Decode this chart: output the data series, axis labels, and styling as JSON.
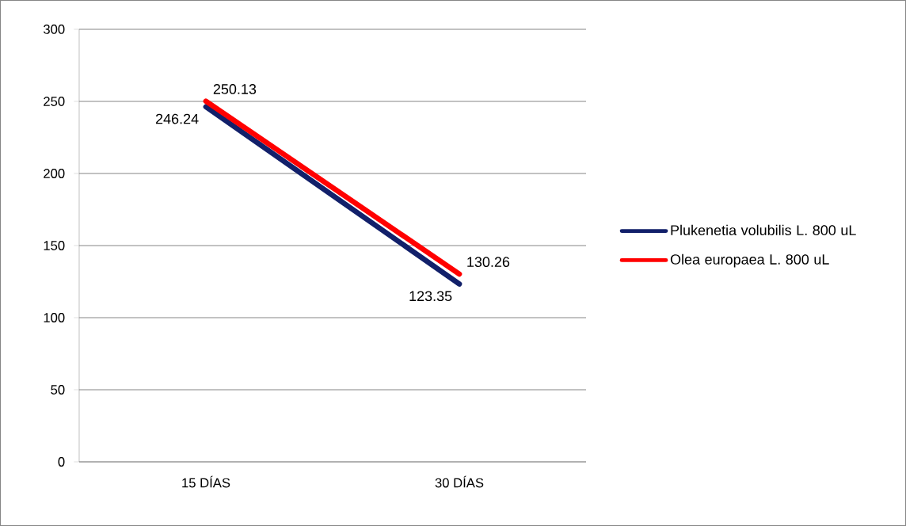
{
  "chart_data": {
    "type": "line",
    "categories": [
      "15 DÍAS",
      "30 DÍAS"
    ],
    "series": [
      {
        "name": "Plukenetia volubilis L. 800 uL",
        "color": "#12206a",
        "values": [
          246.24,
          123.35
        ]
      },
      {
        "name": "Olea europaea L. 800 uL",
        "color": "#ff0000",
        "values": [
          250.13,
          130.26
        ]
      }
    ],
    "ylim": [
      0,
      300
    ],
    "yticks": [
      0,
      50,
      100,
      150,
      200,
      250,
      300
    ],
    "grid": "y",
    "legend": "right",
    "data_labels": true,
    "marker": "none",
    "line_style": "solid"
  }
}
